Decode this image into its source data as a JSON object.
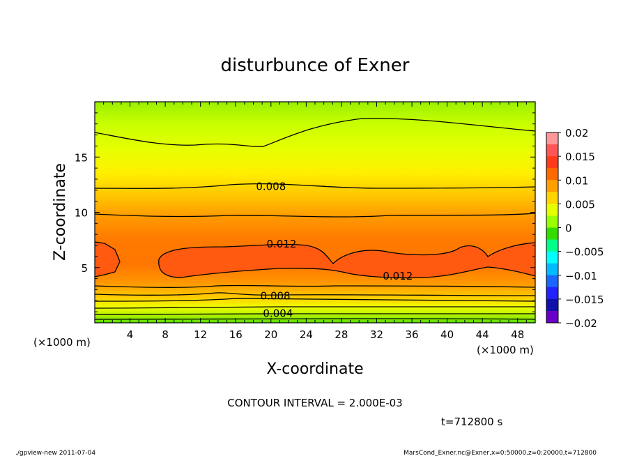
{
  "chart_data": {
    "type": "heatmap",
    "title": "disturbunce of Exner",
    "xlabel": "X-coordinate",
    "ylabel": "Z-coordinate",
    "x_unit": "(×1000 m)",
    "y_unit": "(×1000 m)",
    "xlim": [
      0,
      50
    ],
    "ylim": [
      0,
      20
    ],
    "x_ticks": [
      4,
      8,
      12,
      16,
      20,
      24,
      28,
      32,
      36,
      40,
      44,
      48
    ],
    "y_ticks": [
      5,
      10,
      15
    ],
    "colorbar": {
      "ticks": [
        "0.02",
        "0.015",
        "0.01",
        "0.005",
        "0",
        "−0.005",
        "−0.01",
        "−0.015",
        "−0.02"
      ],
      "min": -0.02,
      "max": 0.02,
      "colors": [
        "#ff9999",
        "#ff5555",
        "#ff3a1a",
        "#ff6a00",
        "#ffa000",
        "#ffd400",
        "#e6ff00",
        "#9aff00",
        "#33dd00",
        "#00ff88",
        "#00ffff",
        "#00bbff",
        "#1a66ff",
        "#2222ff",
        "#1010aa",
        "#6a00c8"
      ]
    },
    "contour_interval": "CONTOUR INTERVAL = 2.000E-03",
    "contour_labels": [
      {
        "text": "0.008",
        "x": 20,
        "y": 12.4
      },
      {
        "text": "0.012",
        "x": 21.2,
        "y": 7.2
      },
      {
        "text": "0.012",
        "x": 34.4,
        "y": 4.3
      },
      {
        "text": "0.008",
        "x": 20.5,
        "y": 2.5
      },
      {
        "text": "0.004",
        "x": 20.8,
        "y": 0.9
      }
    ],
    "time_label": "t=712800 s",
    "footer_left": "./gpview-new  2011-07-04",
    "footer_right": "MarsCond_Exner.nc@Exner,x=0:50000,z=0:20000,t=712800"
  }
}
